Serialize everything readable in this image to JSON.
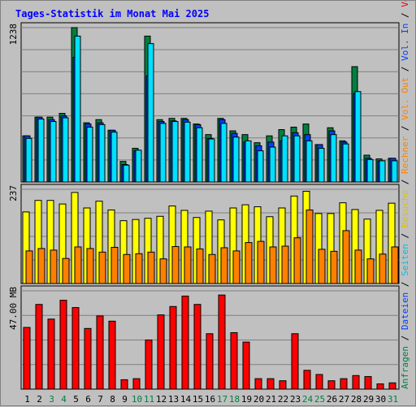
{
  "chart_data": {
    "type": "bar",
    "title": "Tages-Statistik im Monat Mai 2025",
    "categories": [
      "1",
      "2",
      "3",
      "4",
      "5",
      "6",
      "7",
      "8",
      "9",
      "10",
      "11",
      "12",
      "13",
      "14",
      "15",
      "16",
      "17",
      "18",
      "19",
      "20",
      "21",
      "22",
      "23",
      "24",
      "25",
      "26",
      "27",
      "28",
      "29",
      "30",
      "31"
    ],
    "weekend_days": [
      "3",
      "4",
      "10",
      "11",
      "17",
      "18",
      "24",
      "25",
      "31"
    ],
    "panels": [
      {
        "id": "hits",
        "max_label": "1238",
        "ylim": [
          0,
          1238
        ],
        "series": [
          {
            "name": "Anfragen",
            "color": "#008040",
            "values": [
              370,
              520,
              520,
              550,
              1238,
              475,
              500,
              415,
              165,
              270,
              1170,
              500,
              510,
              510,
              465,
              380,
              510,
              410,
              380,
              315,
              370,
              420,
              440,
              465,
              300,
              435,
              330,
              925,
              215,
              185,
              190
            ]
          },
          {
            "name": "Dateien",
            "color": "#0040ff",
            "values": [
              370,
              520,
              500,
              530,
              1000,
              465,
              475,
              415,
              140,
              250,
              850,
              485,
              490,
              500,
              460,
              350,
              500,
              390,
              320,
              290,
              320,
              330,
              395,
              380,
              300,
              410,
              320,
              710,
              190,
              170,
              190
            ]
          },
          {
            "name": "Seiten",
            "color": "#00e0ff",
            "values": [
              350,
              505,
              485,
              515,
              1170,
              440,
              460,
              400,
              135,
              255,
              1110,
              470,
              485,
              480,
              435,
              345,
              470,
              360,
              330,
              250,
              280,
              370,
              370,
              330,
              270,
              380,
              305,
              725,
              180,
              170,
              170
            ]
          }
        ]
      },
      {
        "id": "visits",
        "max_label": "237",
        "ylim": [
          0,
          237
        ],
        "series": [
          {
            "name": "Besuche",
            "color": "#ffff00",
            "values": [
              180,
              209,
              209,
              200,
              229,
              190,
              207,
              185,
              158,
              161,
              164,
              169,
              195,
              184,
              166,
              182,
              160,
              190,
              198,
              193,
              168,
              190,
              220,
              232,
              176,
              176,
              203,
              186,
              162,
              184,
              202
            ]
          },
          {
            "name": "Rechner",
            "color": "#ff8000",
            "values": [
              82,
              88,
              84,
              63,
              92,
              88,
              79,
              91,
              73,
              75,
              79,
              62,
              93,
              92,
              87,
              73,
              90,
              82,
              103,
              106,
              92,
              94,
              115,
              185,
              86,
              81,
              133,
              84,
              62,
              74,
              92
            ]
          }
        ]
      },
      {
        "id": "volume",
        "max_label": "47.00 MB",
        "ylim": [
          0,
          47
        ],
        "series": [
          {
            "name": "Vol. Out",
            "color": "#ff8000",
            "values": []
          },
          {
            "name": "Vol. In",
            "color": "#0040ff",
            "values": []
          },
          {
            "name": "Volumen",
            "color": "#ff0000",
            "values": [
              29.5,
              40.5,
              33.5,
              42.5,
              39.0,
              29.0,
              35.0,
              32.5,
              4.5,
              5.0,
              23.5,
              35.5,
              39.5,
              44.5,
              40.5,
              26.5,
              45.0,
              27.0,
              22.5,
              5.0,
              5.0,
              4.0,
              26.5,
              9.0,
              7.0,
              4.0,
              5.0,
              6.5,
              6.0,
              2.5,
              3.0
            ]
          }
        ]
      }
    ],
    "right_legend": [
      {
        "text": "Anfragen",
        "color": "#008040"
      },
      {
        "text": "Dateien",
        "color": "#0040ff"
      },
      {
        "text": "Seiten",
        "color": "#00c0e0"
      },
      {
        "text": "Besuche",
        "color": "#e0c000"
      },
      {
        "text": "Rechner",
        "color": "#ff8000"
      },
      {
        "text": "Vol. Out",
        "color": "#ff8000"
      },
      {
        "text": "Vol. In",
        "color": "#0040ff"
      },
      {
        "text": "Volumen",
        "color": "#ff0000"
      }
    ],
    "legend_separator": " / ",
    "colors": {
      "background": "#c0c0c0",
      "plot_background": "#c0c0c0",
      "grid": "#808080",
      "title": "#0000ff",
      "weekday_label": "#000000",
      "weekend_label": "#008040"
    },
    "grid": true,
    "legend_position": "right-vertical"
  }
}
